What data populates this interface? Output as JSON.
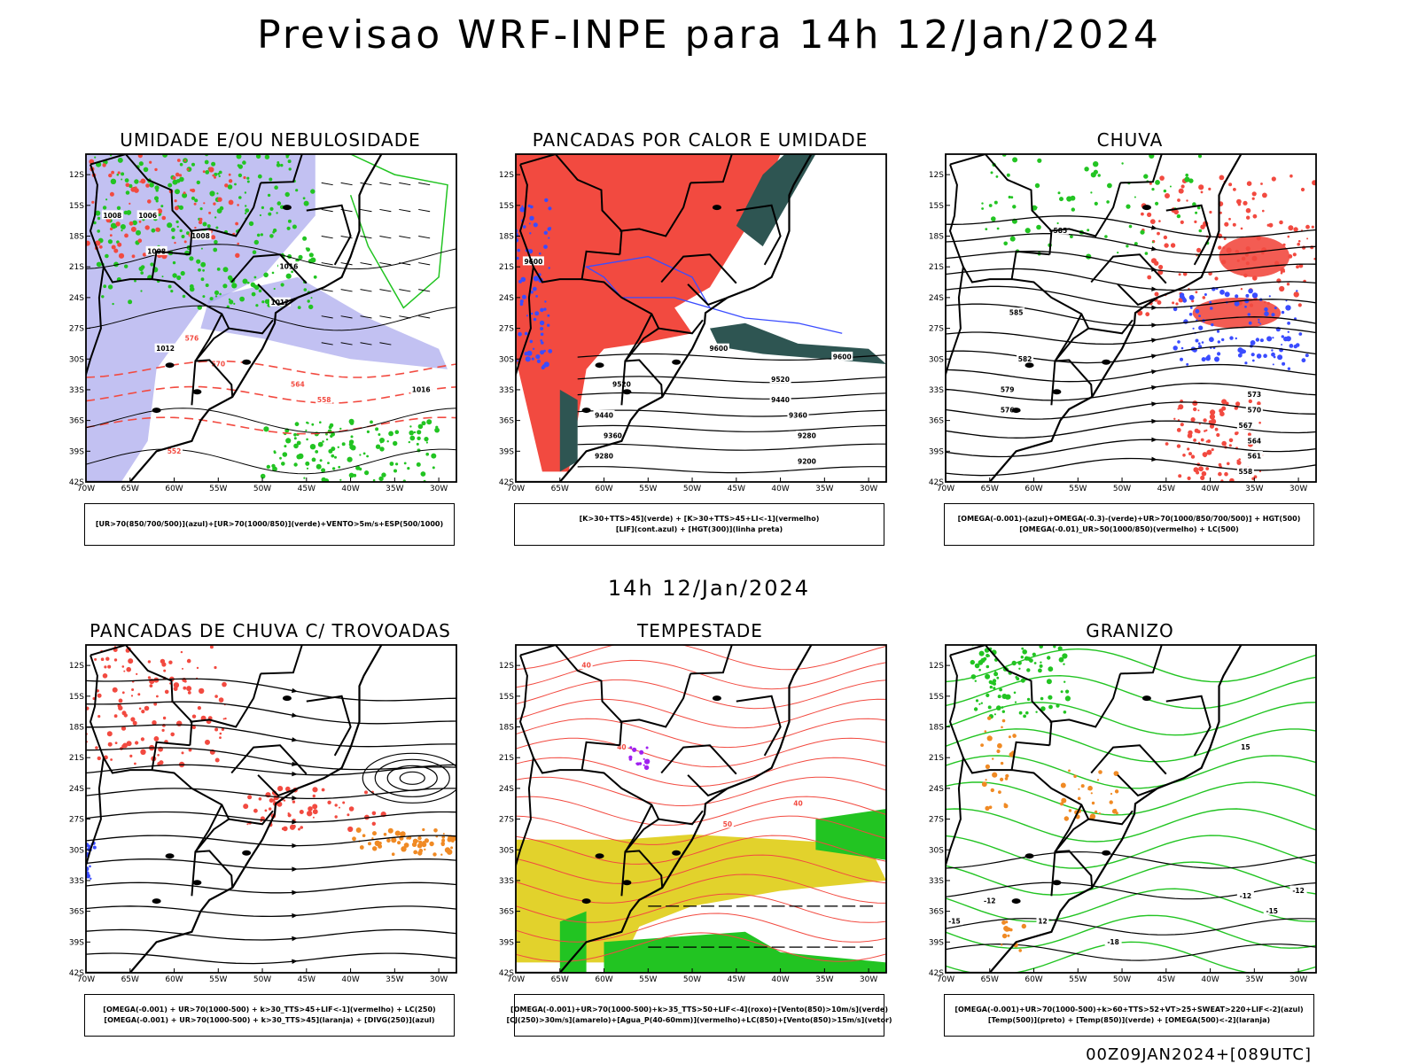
{
  "page": {
    "title": "Previsao WRF-INPE  para 14h 12/Jan/2024",
    "mid_time": "14h 12/Jan/2024",
    "run_info": "00Z09JAN2024+[089UTC]"
  },
  "axes": {
    "lat_labels": [
      "12S",
      "15S",
      "18S",
      "21S",
      "24S",
      "27S",
      "30S",
      "33S",
      "36S",
      "39S",
      "42S"
    ],
    "lon_labels": [
      "70W",
      "65W",
      "60W",
      "55W",
      "50W",
      "45W",
      "40W",
      "35W",
      "30W"
    ]
  },
  "colors": {
    "blue": "#3a4cff",
    "green": "#22c422",
    "red": "#f24a40",
    "dark_green": "#2e5552",
    "orange": "#f08a24",
    "yellow": "#e2d22c",
    "lavender": "#a8a6ec",
    "purple": "#a020f0"
  },
  "panels": [
    {
      "title": "UMIDADE E/OU NEBULOSIDADE",
      "legend": [
        "[UR>70(850/700/500)](azul)+[UR>70(1000/850)](verde)+VENTO>5m/s+ESP(500/1000)"
      ],
      "contour_labels": [
        "1008",
        "1008",
        "1008",
        "1006",
        "1012",
        "1012",
        "1016",
        "1016",
        "576",
        "570",
        "564",
        "558",
        "552"
      ]
    },
    {
      "title": "PANCADAS POR CALOR E UMIDADE",
      "legend": [
        "[K>30+TTS>45](verde) + [K>30+TTS>45+LI<-1](vermelho)",
        "[LIF](cont.azul) + [HGT(300)](linha preta)"
      ],
      "contour_labels": [
        "9600",
        "9600",
        "9520",
        "9520",
        "9440",
        "9440",
        "9360",
        "9360",
        "9280",
        "9280",
        "9200",
        "9600"
      ]
    },
    {
      "title": "CHUVA",
      "legend": [
        "[OMEGA(-0.001)-(azul)+OMEGA(-0.3)-(verde)+UR>70(1000/850/700/500)] + HGT(500)",
        "[OMEGA(-0.01)_UR>50(1000/850)(vermelho) + LC(500)"
      ],
      "contour_labels": [
        "585",
        "585",
        "582",
        "579",
        "576",
        "573",
        "570",
        "567",
        "564",
        "561",
        "558"
      ]
    },
    {
      "title": "PANCADAS DE CHUVA C/ TROVOADAS",
      "legend": [
        "[OMEGA(-0.001) + UR>70(1000-500) + k>30_TTS>45+LIF<-1](vermelho) + LC(250)",
        "[OMEGA(-0.001) + UR>70(1000-500) + k>30_TTS>45](laranja) + [DIVG(250)](azul)"
      ],
      "contour_labels": []
    },
    {
      "title": "TEMPESTADE",
      "legend": [
        "[OMEGA(-0.001)+UR>70(1000-500)+k>35_TTS>50+LIF<-4](roxo)+[Vento(850)>10m/s](verde)",
        "[CJ(250)>30m/s](amarelo)+[Agua_P(40-60mm)](vermelho)+LC(850)+[Vento(850)>15m/s](vetor)"
      ],
      "contour_labels": [
        "40",
        "40",
        "50",
        "40"
      ]
    },
    {
      "title": "GRANIZO",
      "legend": [
        "[OMEGA(-0.001)+UR>70(1000-500)+k>60+TTS>52+VT>25+SWEAT>220+LIF<-2](azul)",
        "[Temp(500)](preto) + [Temp(850)](verde) + [OMEGA(500)<-2](laranja)"
      ],
      "contour_labels": [
        "-12",
        "-15",
        "-18",
        "-15",
        "-12",
        "15",
        "12",
        "-12"
      ]
    }
  ]
}
